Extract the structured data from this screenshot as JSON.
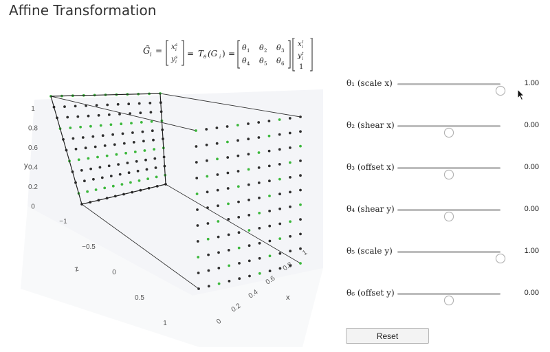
{
  "page_title": "Affine Transformation",
  "formula": {
    "g_tilde": "G̃",
    "g_tilde_sub": "i",
    "equals": "=",
    "xs": "x",
    "xs_sup": "s",
    "xs_sub": "i",
    "ys": "y",
    "ys_sup": "s",
    "ys_sub": "i",
    "t_theta": "T",
    "t_theta_sub": "θ",
    "g_arg": "(G",
    "g_arg_sub": "i",
    "g_arg_close": ")",
    "theta1": "θ",
    "theta1_sub": "1",
    "theta2": "θ",
    "theta2_sub": "2",
    "theta3": "θ",
    "theta3_sub": "3",
    "theta4": "θ",
    "theta4_sub": "4",
    "theta5": "θ",
    "theta5_sub": "5",
    "theta6": "θ",
    "theta6_sub": "6",
    "xt": "x",
    "xt_sup": "t",
    "xt_sub": "i",
    "yt": "y",
    "yt_sup": "t",
    "yt_sub": "i",
    "one": "1"
  },
  "plot": {
    "y_axis_label": "y",
    "z_axis_label": "z",
    "x_axis_label": "x",
    "y_ticks": [
      "1",
      "0.8",
      "0.6",
      "0.4",
      "0.2",
      "0"
    ],
    "z_ticks": [
      "−1",
      "−0.5",
      "0",
      "0.5",
      "1"
    ],
    "x_ticks": [
      "0",
      "0.2",
      "0.4",
      "0.6",
      "0.8",
      "1"
    ],
    "colors": {
      "source_point": "#2f2f2f",
      "sampled_point": "#3cb83c",
      "plane_edge": "#222222",
      "guide_line": "#333333",
      "pane_bg": "#ebedf2"
    }
  },
  "sliders": [
    {
      "label": "θ₁ (scale x)",
      "value": "1.00",
      "position": 1.0
    },
    {
      "label": "θ₂ (shear x)",
      "value": "0.00",
      "position": 0.5
    },
    {
      "label": "θ₃ (offset x)",
      "value": "0.00",
      "position": 0.5
    },
    {
      "label": "θ₄ (shear y)",
      "value": "0.00",
      "position": 0.5
    },
    {
      "label": "θ₅ (scale y)",
      "value": "1.00",
      "position": 1.0
    },
    {
      "label": "θ₆ (offset y)",
      "value": "0.00",
      "position": 0.5
    }
  ],
  "reset_label": "Reset"
}
